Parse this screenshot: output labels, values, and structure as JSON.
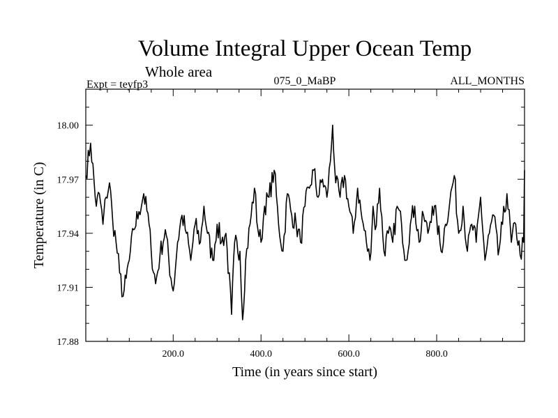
{
  "chart_data": {
    "type": "line",
    "title": "Volume Integral Upper Ocean Temp",
    "subtitle": "Whole area",
    "header_left": "Expt = teyfp3",
    "header_center": "075_0_MaBP",
    "header_right": "ALL_MONTHS",
    "xlabel": "Time (in years since start)",
    "ylabel": "Temperature (in C)",
    "xlim": [
      1,
      1000
    ],
    "ylim": [
      17.88,
      18.02
    ],
    "x_ticks": [
      200.0,
      400.0,
      600.0,
      800.0
    ],
    "x_tick_labels": [
      "200.0",
      "400.0",
      "600.0",
      "800.0"
    ],
    "y_ticks": [
      17.88,
      17.91,
      17.94,
      17.97,
      18.0
    ],
    "y_tick_labels": [
      "17.88",
      "17.91",
      "17.94",
      "17.97",
      "18.00"
    ],
    "grid": false,
    "line_color": "#000000",
    "series": [
      {
        "name": "Volume integral upper ocean temperature",
        "x": [
          1,
          12,
          25,
          32,
          40,
          47,
          55,
          62,
          70,
          78,
          86,
          93,
          100,
          110,
          122,
          133,
          145,
          150,
          160,
          170,
          182,
          195,
          200,
          210,
          220,
          230,
          240,
          250,
          262,
          270,
          278,
          290,
          300,
          310,
          320,
          333,
          340,
          352,
          358,
          365,
          375,
          385,
          393,
          400,
          408,
          418,
          430,
          440,
          450,
          460,
          470,
          480,
          490,
          500,
          510,
          520,
          530,
          540,
          550,
          558,
          563,
          570,
          580,
          590,
          600,
          610,
          620,
          630,
          640,
          648,
          655,
          660,
          670,
          680,
          690,
          700,
          710,
          720,
          730,
          740,
          750,
          760,
          770,
          780,
          790,
          800,
          810,
          820,
          830,
          840,
          850,
          860,
          870,
          880,
          890,
          900,
          910,
          920,
          930,
          940,
          950,
          960,
          970,
          980,
          990,
          998,
          1000
        ],
        "values": [
          17.972,
          17.99,
          17.955,
          17.962,
          17.945,
          17.96,
          17.968,
          17.948,
          17.935,
          17.918,
          17.905,
          17.915,
          17.925,
          17.942,
          17.952,
          17.962,
          17.945,
          17.93,
          17.912,
          17.928,
          17.942,
          17.915,
          17.908,
          17.935,
          17.95,
          17.94,
          17.925,
          17.945,
          17.935,
          17.955,
          17.94,
          17.925,
          17.945,
          17.935,
          17.94,
          17.895,
          17.935,
          17.93,
          17.892,
          17.925,
          17.945,
          17.965,
          17.942,
          17.935,
          17.955,
          17.96,
          17.975,
          17.945,
          17.93,
          17.962,
          17.95,
          17.945,
          17.935,
          17.955,
          17.965,
          17.975,
          17.96,
          17.97,
          17.96,
          17.98,
          18.0,
          17.968,
          17.96,
          17.972,
          17.955,
          17.94,
          17.965,
          17.948,
          17.935,
          17.925,
          17.955,
          17.942,
          17.965,
          17.93,
          17.94,
          17.935,
          17.955,
          17.945,
          17.925,
          17.945,
          17.955,
          17.935,
          17.95,
          17.94,
          17.955,
          17.948,
          17.93,
          17.945,
          17.958,
          17.972,
          17.94,
          17.955,
          17.93,
          17.945,
          17.935,
          17.96,
          17.925,
          17.94,
          17.95,
          17.928,
          17.945,
          17.962,
          17.935,
          17.945,
          17.928,
          17.935,
          17.975
        ]
      }
    ]
  }
}
